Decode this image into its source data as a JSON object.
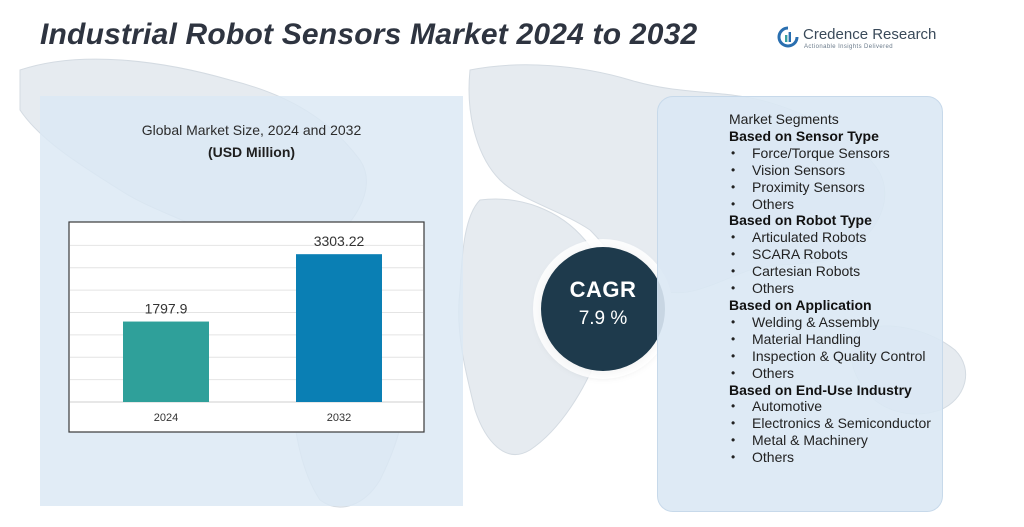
{
  "title": "Industrial Robot Sensors Market 2024 to 2032",
  "brand": {
    "name": "Credence Research",
    "tagline": "Actionable Insights Delivered",
    "logo_icon": "credence-research-logo-icon"
  },
  "chart_data": {
    "type": "bar",
    "title": "Global Market Size, 2024 and 2032",
    "subtitle": "(USD Million)",
    "categories": [
      "2024",
      "2032"
    ],
    "values": [
      1797.9,
      3303.22
    ],
    "value_labels": [
      "1797.9",
      "3303.22"
    ],
    "colors": [
      "#2fa09a",
      "#0a7fb4"
    ],
    "ylim": [
      0,
      4000
    ],
    "grid": true,
    "legend": "none"
  },
  "cagr": {
    "label": "CAGR",
    "value": "7.9 %"
  },
  "segments": {
    "title": "Market Segments",
    "groups": [
      {
        "heading": "Based on Sensor Type",
        "items": [
          "Force/Torque Sensors",
          "Vision Sensors",
          "Proximity Sensors",
          "Others"
        ]
      },
      {
        "heading": "Based on Robot Type",
        "items": [
          "Articulated Robots",
          "SCARA Robots",
          "Cartesian Robots",
          "Others"
        ]
      },
      {
        "heading": "Based on Application",
        "items": [
          "Welding & Assembly",
          "Material Handling",
          "Inspection & Quality Control",
          "Others"
        ]
      },
      {
        "heading": "Based on End-Use Industry",
        "items": [
          "Automotive",
          "Electronics & Semiconductor",
          "Metal & Machinery",
          "Others"
        ]
      }
    ]
  },
  "colors": {
    "panel": "#dae8f4",
    "cagr_circle": "#1e3a4c",
    "title_text": "#2e3440"
  }
}
